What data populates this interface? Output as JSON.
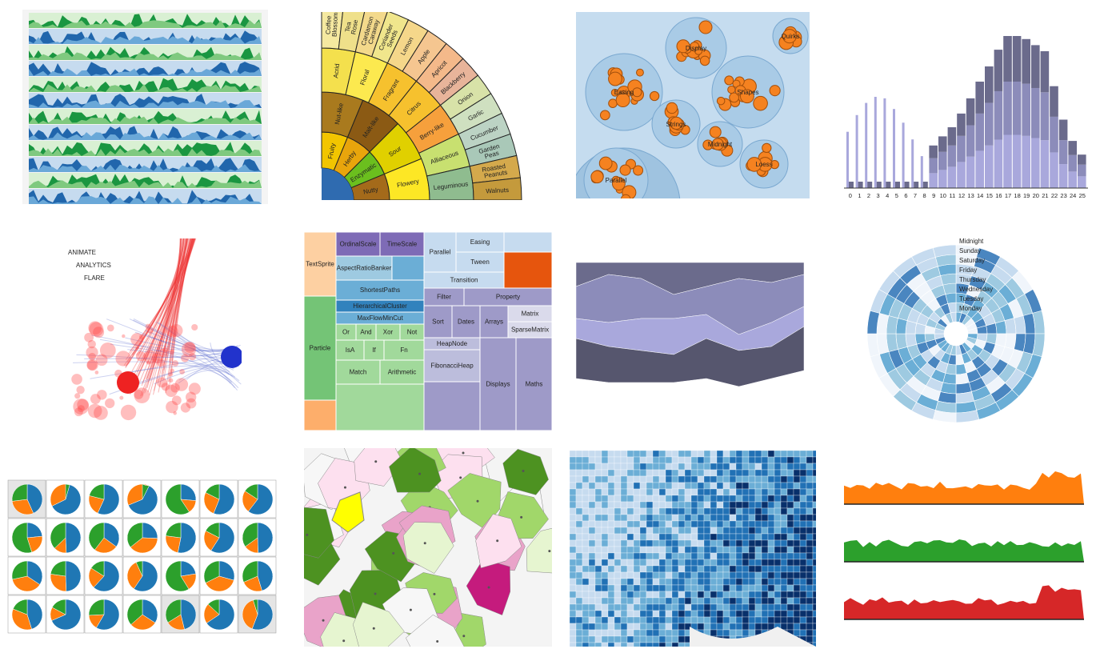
{
  "tiles": {
    "horizon": {
      "colors": [
        "#2166ac",
        "#6aa8d8",
        "#c6dbef",
        "#1a9641",
        "#7fc97f",
        "#d9f0d3"
      ]
    },
    "sunburst": {
      "labels": [
        "Coffee Blossom",
        "Tea Rose",
        "Cardamon Caraway",
        "Coriander Seeds",
        "Lemon",
        "Apple",
        "Apricot",
        "Blackberry",
        "Onion",
        "Garlic",
        "Cucumber",
        "Garden Peas",
        "Roasted Peanuts",
        "Walnuts",
        "Acrid",
        "Floral",
        "Fragrant",
        "Citrus",
        "Berry-like",
        "Alliaceous",
        "Leguminous",
        "Nut-like",
        "Malt-like",
        "Sour",
        "Flowery",
        "Fruity",
        "Herby",
        "Enzymatic",
        "Nutty"
      ]
    },
    "packed_circles": {
      "labels": [
        "Easing",
        "Display",
        "Shapes",
        "Strings",
        "Midnight",
        "Loess",
        "Parallel",
        "Quirks"
      ]
    },
    "histogram": {
      "chart_data": {
        "type": "bar",
        "categories": [
          "0",
          "1",
          "2",
          "3",
          "4",
          "5",
          "6",
          "7",
          "8",
          "9",
          "10",
          "11",
          "12",
          "13",
          "14",
          "15",
          "16",
          "17",
          "18",
          "19",
          "20",
          "21",
          "22",
          "23",
          "24",
          "25"
        ],
        "values": [
          37,
          48,
          56,
          60,
          59,
          52,
          43,
          32,
          21,
          28,
          34,
          40,
          49,
          59,
          70,
          80,
          91,
          100,
          100,
          98,
          94,
          90,
          67,
          45,
          31,
          22
        ],
        "colors": [
          "#a9a8dc",
          "#8c8cba",
          "#6b6b8c"
        ]
      }
    },
    "network": {
      "labels": [
        "ANIMATE",
        "ANALYTICS",
        "FLARE"
      ]
    },
    "treemap": {
      "labels": [
        "OrdinalScale",
        "TimeScale",
        "TextSprite",
        "AspectRatioBanker",
        "ShortestPaths",
        "HierarchicalCluster",
        "MaxFlowMinCut",
        "Particle",
        "Or",
        "And",
        "Xor",
        "Not",
        "IsA",
        "If",
        "Fn",
        "Match",
        "Arithmetic",
        "Parallel",
        "Easing",
        "Tween",
        "Transition",
        "Filter",
        "Property",
        "Sort",
        "Dates",
        "Arrays",
        "Matrix",
        "SparseMatrix",
        "HeapNode",
        "FibonacciHeap",
        "Displays",
        "Maths"
      ]
    },
    "streamgraph": {
      "colors": [
        "#6b6b8c",
        "#8c8cba",
        "#a9a8dc",
        "#56566e"
      ]
    },
    "radial_heatmap": {
      "labels": [
        "Midnight",
        "Sunday",
        "Saturday",
        "Friday",
        "Thursday",
        "Wednesday",
        "Tuesday",
        "Monday"
      ]
    },
    "pie_grid": {
      "colors": [
        "#1f77b4",
        "#ff7f0e",
        "#2ca02c"
      ]
    },
    "voronoi": {
      "colors": [
        "#c51b7d",
        "#e9a3c9",
        "#fde0ef",
        "#f7f7f7",
        "#e6f5d0",
        "#a1d76a",
        "#4d9221",
        "#ffff00"
      ]
    },
    "choropleth": {
      "colors": [
        "#08306b",
        "#2171b5",
        "#6baed6",
        "#c6dbef"
      ]
    },
    "area_charts": {
      "colors": [
        "#ff7f0e",
        "#2ca02c",
        "#d62728"
      ]
    }
  }
}
